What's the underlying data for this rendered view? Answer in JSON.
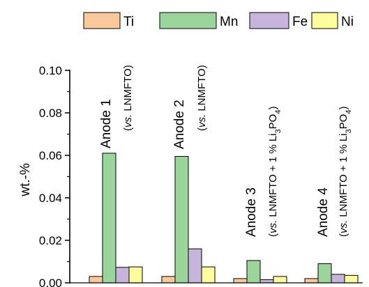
{
  "chart_data": {
    "type": "bar",
    "categories": [
      "Anode 1",
      "Anode 2",
      "Anode 3",
      "Anode 4"
    ],
    "category_notes": [
      "(vs. LNMFTO)",
      "(vs. LNMFTO)",
      "(vs. LNMFTO + 1 % Li3PO4)",
      "(vs. LNMFTO + 1 % Li3PO4)"
    ],
    "series": [
      {
        "name": "Ti",
        "color": "#f9c89b",
        "values": [
          0.003,
          0.003,
          0.002,
          0.002
        ]
      },
      {
        "name": "Mn",
        "color": "#9ad59a",
        "values": [
          0.061,
          0.0595,
          0.0105,
          0.009
        ]
      },
      {
        "name": "Fe",
        "color": "#c6b4dc",
        "values": [
          0.0073,
          0.016,
          0.0015,
          0.004
        ]
      },
      {
        "name": "Ni",
        "color": "#fefd9c",
        "values": [
          0.0075,
          0.0075,
          0.003,
          0.0035
        ]
      }
    ],
    "ylabel": "wt.-%",
    "ylim": [
      0,
      0.1
    ],
    "yticks": [
      "0.00",
      "0.02",
      "0.04",
      "0.06",
      "0.08",
      "0.10"
    ],
    "legend_position": "top-right",
    "grid": false
  }
}
